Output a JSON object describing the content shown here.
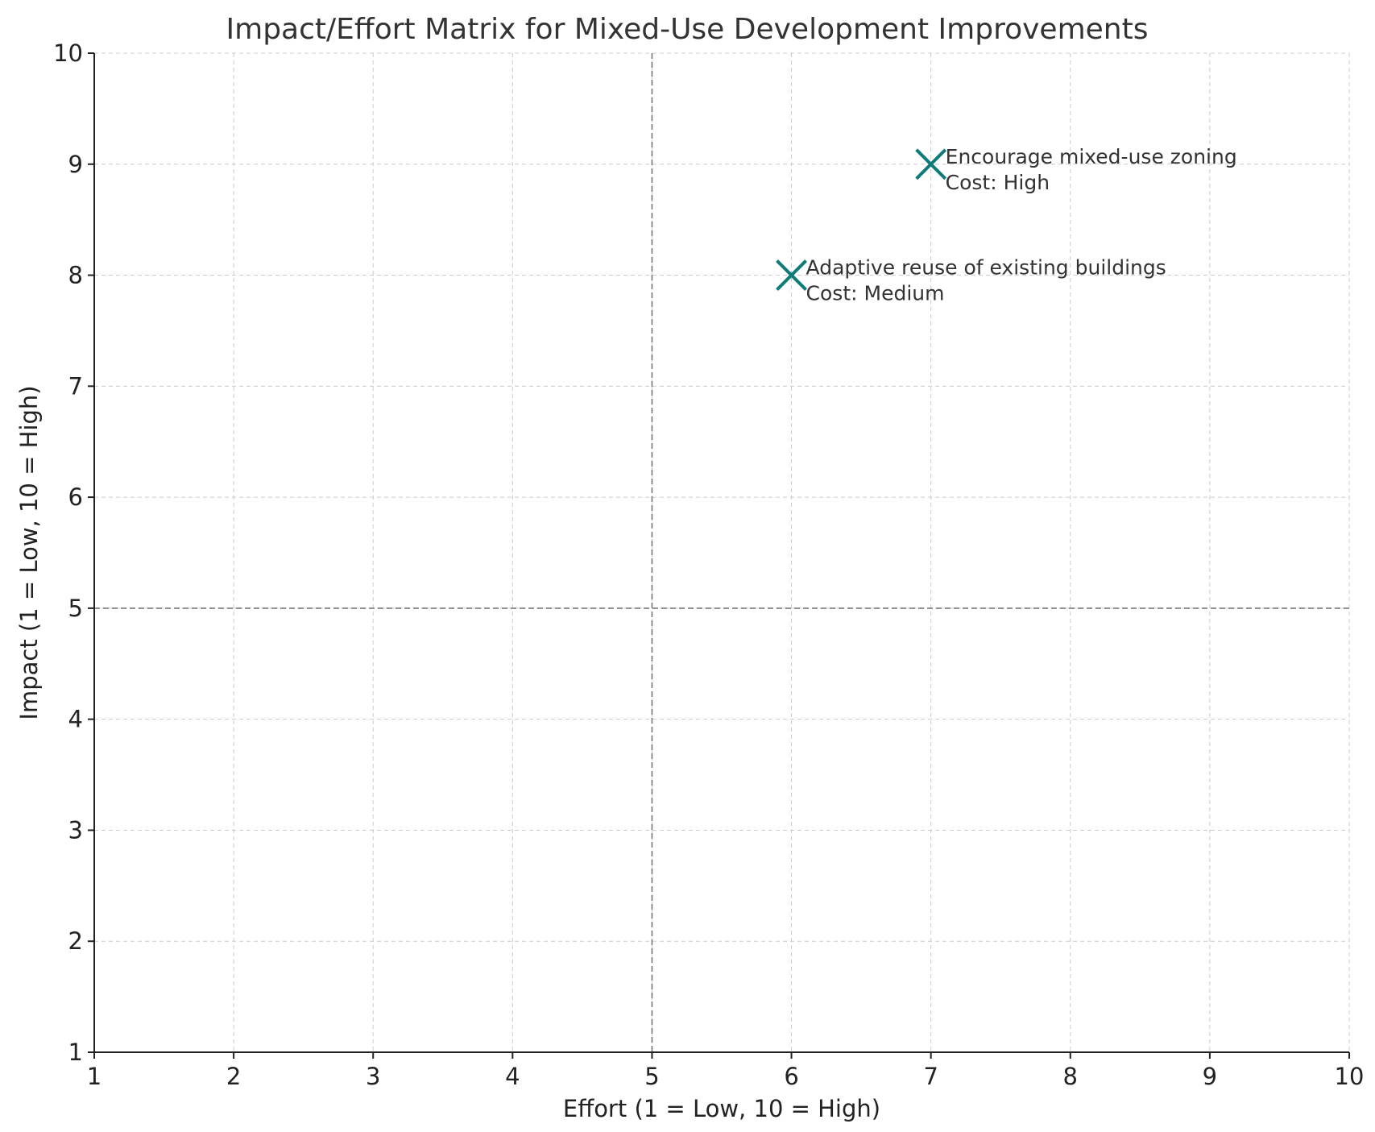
{
  "chart_data": {
    "type": "scatter",
    "title": "Impact/Effort Matrix for Mixed-Use Development Improvements",
    "xlabel": "Effort (1 = Low, 10 = High)",
    "ylabel": "Impact (1 = Low, 10 = High)",
    "xlim": [
      1,
      10
    ],
    "ylim": [
      1,
      10
    ],
    "xticks": [
      1,
      2,
      3,
      4,
      5,
      6,
      7,
      8,
      9,
      10
    ],
    "yticks": [
      1,
      2,
      3,
      4,
      5,
      6,
      7,
      8,
      9,
      10
    ],
    "grid": true,
    "quadrant_lines": {
      "x": 5,
      "y": 5
    },
    "marker": "x",
    "marker_color": "#0f7b78",
    "points": [
      {
        "x": 7,
        "y": 9,
        "label_line1": "Encourage mixed-use zoning",
        "label_line2": "Cost: High"
      },
      {
        "x": 6,
        "y": 8,
        "label_line1": "Adaptive reuse of existing buildings",
        "label_line2": "Cost: Medium"
      }
    ]
  }
}
